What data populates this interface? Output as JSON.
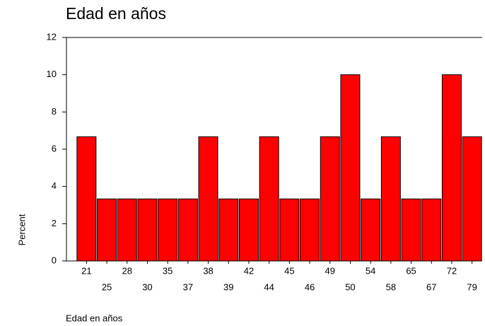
{
  "chart_data": {
    "type": "bar",
    "title": "Edad en años",
    "x_label": "Edad en años",
    "y_label": "Percent",
    "categories": [
      "21",
      "25",
      "28",
      "30",
      "35",
      "37",
      "38",
      "39",
      "42",
      "44",
      "45",
      "46",
      "49",
      "50",
      "54",
      "58",
      "65",
      "67",
      "72",
      "79"
    ],
    "values": [
      6.67,
      3.33,
      3.33,
      3.33,
      3.33,
      3.33,
      6.67,
      3.33,
      3.33,
      6.67,
      3.33,
      3.33,
      6.67,
      10,
      3.33,
      6.67,
      3.33,
      3.33,
      10,
      6.67
    ],
    "color": "#ff0000",
    "ylim": [
      0,
      12
    ],
    "yticks": [
      0,
      2,
      4,
      6,
      8,
      10,
      12
    ],
    "grid": false
  }
}
